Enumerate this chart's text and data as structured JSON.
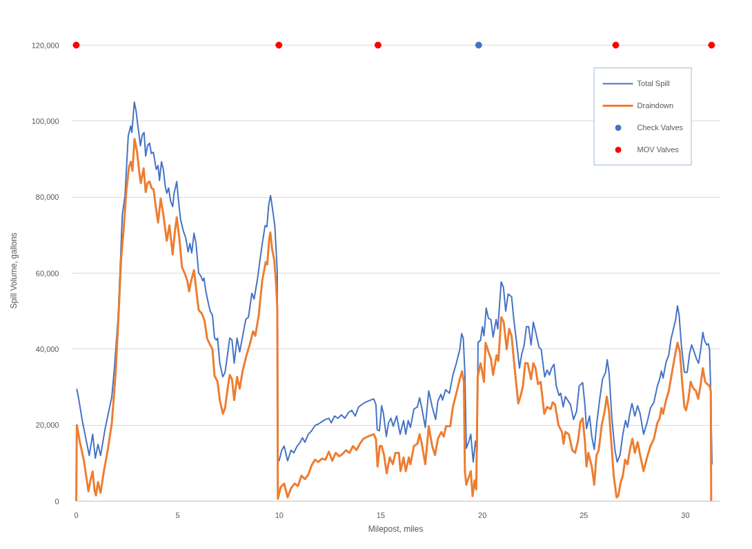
{
  "chart_data": {
    "type": "line",
    "xlabel": "Milepost, miles",
    "ylabel": "Spill Volume, gallons",
    "xlim": [
      0,
      31.7
    ],
    "xticks": [
      0,
      5,
      10,
      15,
      20,
      25,
      30
    ],
    "ylim": [
      0,
      120000
    ],
    "yticks": [
      0,
      {
        "value": 20000,
        "label": "20,000"
      },
      {
        "value": 40000,
        "label": "40,000"
      },
      {
        "value": 60000,
        "label": "60,000"
      },
      {
        "value": 80000,
        "label": "80,000"
      },
      {
        "value": 100000,
        "label": "100,000"
      },
      {
        "value": 120000,
        "label": "120,000"
      }
    ],
    "grid": "y",
    "legend": "top right",
    "series": [
      {
        "name": "Total Spill",
        "color": "#4472c4",
        "x": [
          0.03,
          0.12,
          0.29,
          0.51,
          0.64,
          0.81,
          0.94,
          1.07,
          1.2,
          1.42,
          1.75,
          1.88,
          2.07,
          2.27,
          2.4,
          2.56,
          2.68,
          2.74,
          2.86,
          2.95,
          3.03,
          3.09,
          3.16,
          3.25,
          3.34,
          3.42,
          3.51,
          3.61,
          3.7,
          3.8,
          3.94,
          4.03,
          4.1,
          4.2,
          4.29,
          4.38,
          4.46,
          4.55,
          4.65,
          4.75,
          4.82,
          4.95,
          5.04,
          5.14,
          5.27,
          5.4,
          5.51,
          5.6,
          5.69,
          5.8,
          5.9,
          6.03,
          6.12,
          6.23,
          6.29,
          6.38,
          6.52,
          6.6,
          6.71,
          6.81,
          6.9,
          6.96,
          7.07,
          7.22,
          7.33,
          7.44,
          7.56,
          7.67,
          7.78,
          7.92,
          8.05,
          8.2,
          8.35,
          8.48,
          8.65,
          8.76,
          8.93,
          9.05,
          9.16,
          9.3,
          9.39,
          9.48,
          9.57,
          9.67,
          9.78,
          9.9,
          9.93,
          9.99,
          10.12,
          10.24,
          10.41,
          10.58,
          10.72,
          10.86,
          11.03,
          11.14,
          11.26,
          11.43,
          11.59,
          11.76,
          11.93,
          12.1,
          12.27,
          12.44,
          12.56,
          12.72,
          12.89,
          13.06,
          13.23,
          13.4,
          13.57,
          13.74,
          13.91,
          14.14,
          14.36,
          14.65,
          14.76,
          14.82,
          14.93,
          15.04,
          15.13,
          15.27,
          15.38,
          15.5,
          15.61,
          15.78,
          15.95,
          16.12,
          16.23,
          16.35,
          16.46,
          16.63,
          16.8,
          16.91,
          17.02,
          17.19,
          17.36,
          17.53,
          17.7,
          17.81,
          17.96,
          18.04,
          18.19,
          18.38,
          18.55,
          18.72,
          18.89,
          18.98,
          19.06,
          19.14,
          19.21,
          19.34,
          19.43,
          19.55,
          19.66,
          19.74,
          19.79,
          19.91,
          20.0,
          20.08,
          20.19,
          20.3,
          20.42,
          20.53,
          20.68,
          20.76,
          20.93,
          21.04,
          21.15,
          21.27,
          21.44,
          21.55,
          21.66,
          21.74,
          21.83,
          21.94,
          22.06,
          22.17,
          22.28,
          22.4,
          22.51,
          22.62,
          22.79,
          22.9,
          23.07,
          23.19,
          23.3,
          23.41,
          23.53,
          23.64,
          23.78,
          23.86,
          23.98,
          24.09,
          24.2,
          24.34,
          24.49,
          24.64,
          24.77,
          24.94,
          25.05,
          25.13,
          25.28,
          25.39,
          25.51,
          25.65,
          25.79,
          25.92,
          26.07,
          26.15,
          26.24,
          26.38,
          26.53,
          26.64,
          26.78,
          26.92,
          27.05,
          27.15,
          27.26,
          27.37,
          27.51,
          27.65,
          27.77,
          27.94,
          28.11,
          28.28,
          28.45,
          28.62,
          28.73,
          28.82,
          28.9,
          29.05,
          29.18,
          29.29,
          29.41,
          29.52,
          29.61,
          29.69,
          29.8,
          29.95,
          30.09,
          30.2,
          30.31,
          30.43,
          30.54,
          30.65,
          30.74,
          30.86,
          30.94,
          31.05,
          31.13,
          31.19,
          31.24,
          31.31
        ],
        "values": [
          29400,
          27000,
          21400,
          15500,
          12000,
          17600,
          11300,
          14900,
          12000,
          19000,
          27400,
          35000,
          48900,
          75400,
          80300,
          96000,
          98700,
          97000,
          105000,
          102600,
          99000,
          96600,
          93500,
          96300,
          97000,
          90800,
          93500,
          94200,
          91500,
          91800,
          87300,
          88300,
          84400,
          89300,
          87300,
          83000,
          81000,
          82400,
          78900,
          77500,
          81000,
          84100,
          78900,
          74000,
          71200,
          69100,
          65600,
          67800,
          65300,
          70500,
          67800,
          60000,
          59400,
          58000,
          58700,
          55300,
          51700,
          50000,
          48900,
          43000,
          42400,
          42900,
          36300,
          32700,
          33900,
          38100,
          42900,
          42400,
          36300,
          42900,
          39300,
          43500,
          47800,
          48400,
          54700,
          53200,
          58600,
          63500,
          67700,
          72500,
          72200,
          78000,
          80400,
          76800,
          72500,
          60400,
          10600,
          10600,
          13400,
          14500,
          10600,
          13400,
          12700,
          14300,
          15500,
          16700,
          15500,
          17600,
          18500,
          19900,
          20300,
          20900,
          21500,
          21800,
          20600,
          22400,
          21800,
          22700,
          21800,
          23300,
          23900,
          22400,
          24800,
          25700,
          26300,
          26900,
          25400,
          18800,
          18500,
          25100,
          23000,
          17000,
          20600,
          21800,
          19700,
          22400,
          17600,
          21200,
          17600,
          21200,
          19400,
          24200,
          24800,
          27200,
          24500,
          19400,
          29000,
          24800,
          21500,
          26300,
          28100,
          26600,
          29300,
          28400,
          33200,
          36300,
          39900,
          44100,
          42900,
          33900,
          13900,
          15800,
          17600,
          10300,
          15800,
          13400,
          41800,
          42300,
          45900,
          43500,
          50800,
          48100,
          47800,
          43200,
          47800,
          45300,
          57700,
          56200,
          50000,
          54500,
          53800,
          47800,
          42900,
          39300,
          35000,
          38700,
          41100,
          45900,
          45900,
          41100,
          47100,
          44700,
          40500,
          39900,
          32700,
          34500,
          33200,
          35000,
          36000,
          30300,
          27800,
          28400,
          24800,
          27500,
          26600,
          25400,
          21500,
          23600,
          30300,
          31200,
          25400,
          19100,
          22400,
          17000,
          13600,
          21200,
          27200,
          32100,
          33900,
          37200,
          33900,
          21800,
          13400,
          10300,
          12100,
          17600,
          21200,
          19400,
          23000,
          25700,
          22400,
          25100,
          23000,
          17600,
          20600,
          24500,
          26000,
          30300,
          32100,
          34200,
          32400,
          36600,
          38400,
          42600,
          45300,
          47800,
          51400,
          49000,
          41100,
          33900,
          33900,
          38700,
          41100,
          39300,
          37500,
          36300,
          39300,
          44400,
          42300,
          41100,
          41400,
          39900,
          30300,
          9800
        ]
      },
      {
        "name": "Draindown",
        "color": "#ed7d31",
        "x": [
          0,
          0.03,
          0.18,
          0.38,
          0.6,
          0.71,
          0.81,
          0.9,
          0.97,
          1.07,
          1.2,
          1.36,
          1.55,
          1.75,
          1.94,
          2.08,
          2.21,
          2.33,
          2.47,
          2.6,
          2.69,
          2.77,
          2.87,
          2.99,
          3.12,
          3.18,
          3.32,
          3.42,
          3.51,
          3.61,
          3.71,
          3.81,
          3.9,
          4.03,
          4.16,
          4.29,
          4.46,
          4.59,
          4.75,
          4.85,
          4.95,
          5.08,
          5.21,
          5.34,
          5.47,
          5.56,
          5.66,
          5.8,
          5.92,
          6.03,
          6.19,
          6.32,
          6.45,
          6.58,
          6.71,
          6.81,
          6.96,
          7.07,
          7.22,
          7.33,
          7.44,
          7.56,
          7.67,
          7.78,
          7.92,
          8.05,
          8.2,
          8.37,
          8.54,
          8.71,
          8.82,
          8.99,
          9.16,
          9.33,
          9.41,
          9.5,
          9.56,
          9.64,
          9.75,
          9.84,
          9.9,
          9.93,
          10.07,
          10.24,
          10.41,
          10.58,
          10.75,
          10.92,
          11.09,
          11.26,
          11.43,
          11.59,
          11.76,
          11.93,
          12.1,
          12.27,
          12.44,
          12.61,
          12.78,
          12.95,
          13.12,
          13.29,
          13.46,
          13.63,
          13.8,
          13.97,
          14.14,
          14.36,
          14.65,
          14.76,
          14.84,
          14.95,
          15.04,
          15.16,
          15.29,
          15.44,
          15.59,
          15.72,
          15.89,
          15.97,
          16.12,
          16.23,
          16.38,
          16.46,
          16.63,
          16.8,
          16.91,
          17.02,
          17.19,
          17.36,
          17.53,
          17.67,
          17.81,
          17.98,
          18.1,
          18.21,
          18.42,
          18.55,
          18.72,
          18.89,
          19.0,
          19.09,
          19.14,
          19.21,
          19.32,
          19.43,
          19.52,
          19.62,
          19.7,
          19.77,
          19.91,
          20.0,
          20.08,
          20.16,
          20.3,
          20.42,
          20.53,
          20.7,
          20.79,
          20.93,
          21.05,
          21.2,
          21.32,
          21.44,
          21.61,
          21.77,
          21.89,
          22.0,
          22.11,
          22.23,
          22.4,
          22.51,
          22.62,
          22.74,
          22.87,
          23.05,
          23.19,
          23.36,
          23.47,
          23.58,
          23.75,
          23.92,
          24.0,
          24.09,
          24.26,
          24.43,
          24.57,
          24.71,
          24.83,
          24.94,
          25.05,
          25.13,
          25.22,
          25.39,
          25.51,
          25.62,
          25.73,
          25.88,
          26.02,
          26.13,
          26.24,
          26.38,
          26.47,
          26.61,
          26.69,
          26.81,
          26.92,
          27.03,
          27.15,
          27.28,
          27.39,
          27.51,
          27.65,
          27.77,
          27.94,
          28.11,
          28.28,
          28.45,
          28.62,
          28.73,
          28.82,
          28.9,
          29.05,
          29.18,
          29.32,
          29.46,
          29.61,
          29.73,
          29.84,
          29.95,
          30.03,
          30.14,
          30.26,
          30.4,
          30.52,
          30.63,
          30.74,
          30.86,
          30.97,
          31.08,
          31.19,
          31.25,
          31.27
        ],
        "values": [
          0,
          20000,
          15500,
          10600,
          2600,
          5700,
          7800,
          2900,
          1500,
          5000,
          2200,
          7800,
          13400,
          20400,
          33600,
          48200,
          63600,
          71200,
          81700,
          88000,
          89300,
          86900,
          95300,
          92100,
          85900,
          83700,
          87600,
          81300,
          83700,
          84100,
          82400,
          82000,
          78200,
          73300,
          79600,
          75400,
          68500,
          72600,
          64900,
          70500,
          74700,
          69100,
          61500,
          60000,
          58000,
          55200,
          58000,
          60800,
          55200,
          50300,
          49300,
          47500,
          42700,
          41300,
          39900,
          33000,
          31400,
          26600,
          23000,
          24500,
          29000,
          33200,
          32100,
          26600,
          32700,
          29600,
          34400,
          38100,
          41100,
          44700,
          43500,
          49000,
          58000,
          62900,
          62300,
          68900,
          70700,
          66500,
          63500,
          57400,
          50800,
          600,
          3700,
          4600,
          1000,
          3400,
          4600,
          4000,
          6700,
          5800,
          7000,
          9400,
          10900,
          10300,
          11200,
          10900,
          13000,
          10600,
          12700,
          11800,
          12400,
          13400,
          12700,
          14500,
          13400,
          15100,
          16400,
          17000,
          17600,
          16400,
          9100,
          14500,
          14500,
          12100,
          7300,
          11500,
          9700,
          12700,
          12700,
          7900,
          11500,
          7900,
          11500,
          9700,
          14500,
          15100,
          17600,
          15100,
          9700,
          19700,
          14500,
          12100,
          16400,
          18200,
          17000,
          19700,
          19700,
          24800,
          28400,
          32100,
          34200,
          31400,
          7900,
          4300,
          6100,
          7900,
          1300,
          5500,
          3100,
          32700,
          36300,
          33900,
          31400,
          41700,
          39300,
          37500,
          33200,
          38400,
          36900,
          48400,
          47200,
          40000,
          45300,
          43500,
          33900,
          25700,
          27800,
          30300,
          36300,
          36300,
          32100,
          36300,
          35000,
          30800,
          31400,
          23000,
          24800,
          24200,
          26000,
          25400,
          20000,
          18200,
          15100,
          18200,
          17600,
          13400,
          12700,
          15800,
          20900,
          21800,
          15800,
          9100,
          12700,
          9100,
          4300,
          12100,
          13400,
          20000,
          23600,
          27500,
          23600,
          13400,
          6700,
          1000,
          1300,
          4900,
          6700,
          10900,
          9700,
          13900,
          16400,
          12700,
          15500,
          12100,
          7900,
          11500,
          14500,
          16400,
          20600,
          21800,
          24500,
          23000,
          26600,
          29000,
          33200,
          37500,
          41700,
          39300,
          31400,
          24800,
          23900,
          26600,
          31400,
          29600,
          29000,
          26900,
          30300,
          35000,
          31400,
          30800,
          30300,
          29000,
          0
        ]
      },
      {
        "name": "Check Valves",
        "type": "scatter",
        "marker": "circle",
        "color": "#4472c4",
        "x": [
          19.82
        ],
        "values": [
          120000
        ]
      },
      {
        "name": "MOV Valves",
        "type": "scatter",
        "marker": "circle",
        "color": "#ff0000",
        "x": [
          0,
          9.98,
          14.86,
          26.57,
          31.29
        ],
        "values": [
          120000,
          120000,
          120000,
          120000,
          120000
        ]
      }
    ]
  }
}
